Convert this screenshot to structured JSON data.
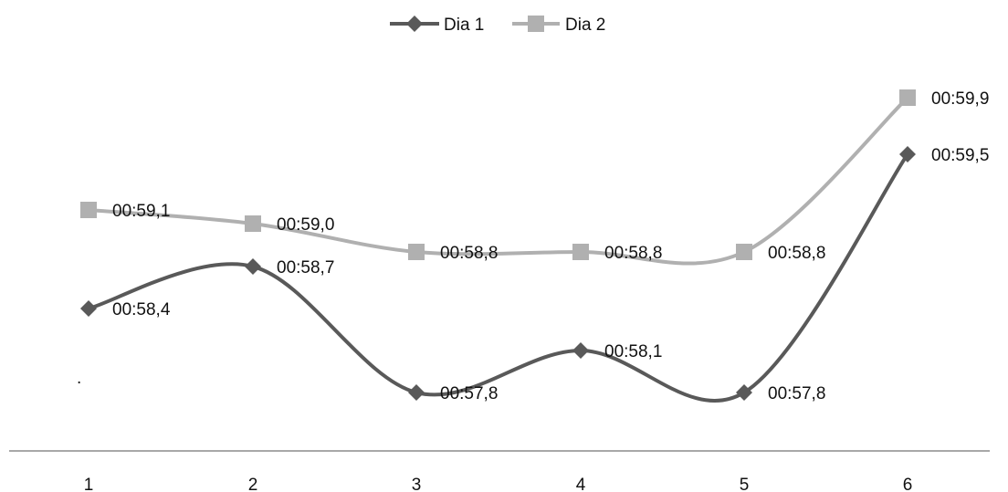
{
  "chart_data": {
    "type": "line",
    "title": "",
    "xlabel": "",
    "ylabel": "",
    "categories": [
      "1",
      "2",
      "3",
      "4",
      "5",
      "6"
    ],
    "smooth": true,
    "grid": false,
    "yaxis_visible": false,
    "ylim_seconds": [
      57.0,
      60.5
    ],
    "legend": {
      "position": "top"
    },
    "annotation": ".",
    "series": [
      {
        "name": "Dia 1",
        "color": "#595959",
        "marker": "diamond",
        "values_seconds": [
          58.4,
          58.7,
          57.8,
          58.1,
          57.8,
          59.5
        ],
        "labels": [
          "00:58,4",
          "00:58,7",
          "00:57,8",
          "00:58,1",
          "00:57,8",
          "00:59,5"
        ]
      },
      {
        "name": "Dia 2",
        "color": "#b0b0b0",
        "marker": "square",
        "values_seconds": [
          59.1,
          59.0,
          58.8,
          58.8,
          58.8,
          59.9
        ],
        "labels": [
          "00:59,1",
          "00:59,0",
          "00:58,8",
          "00:58,8",
          "00:58,8",
          "00:59,9"
        ]
      }
    ]
  }
}
